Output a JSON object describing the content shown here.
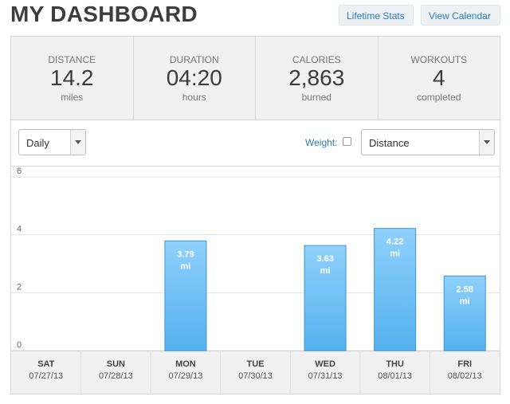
{
  "header": {
    "title": "MY DASHBOARD",
    "lifetime_stats_label": "Lifetime Stats",
    "view_calendar_label": "View Calendar"
  },
  "stats": {
    "distance": {
      "label": "DISTANCE",
      "value": "14.2",
      "unit": "miles"
    },
    "duration": {
      "label": "DURATION",
      "value": "04:20",
      "unit": "hours"
    },
    "calories": {
      "label": "CALORIES",
      "value": "2,863",
      "unit": "burned"
    },
    "workouts": {
      "label": "WORKOUTS",
      "value": "4",
      "unit": "completed"
    }
  },
  "controls": {
    "period_selected": "Daily",
    "weight_label": "Weight:",
    "metric_selected": "Distance"
  },
  "colors": {
    "accent": "#2a7ab8",
    "bar_top": "#8fd0fb",
    "bar_bottom": "#55b1ef",
    "bar_border": "#3f97d4"
  },
  "chart_data": {
    "type": "bar",
    "categories": [
      "SAT",
      "SUN",
      "MON",
      "TUE",
      "WED",
      "THU",
      "FRI"
    ],
    "dates": [
      "07/27/13",
      "07/28/13",
      "07/29/13",
      "07/30/13",
      "07/31/13",
      "08/01/13",
      "08/02/13"
    ],
    "values": [
      0,
      0,
      3.79,
      0,
      3.63,
      4.22,
      2.58
    ],
    "data_labels": [
      "",
      "",
      "3.79",
      "",
      "3.63",
      "4.22",
      "2.58"
    ],
    "value_unit": "mi",
    "y_ticks": [
      0,
      2,
      4,
      6
    ],
    "ylim": [
      0,
      6
    ],
    "grid": true
  }
}
